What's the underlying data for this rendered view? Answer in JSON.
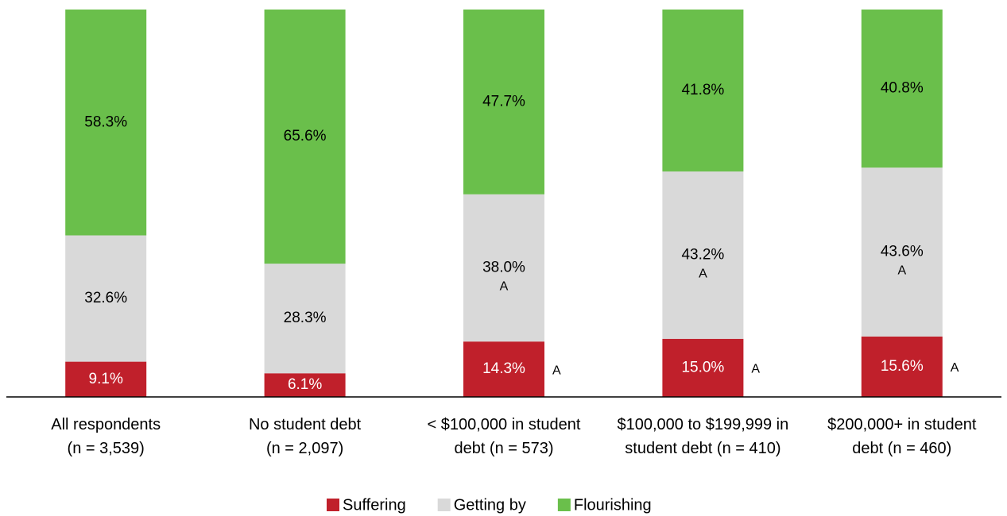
{
  "chart_data": {
    "type": "stacked_bar",
    "categories": [
      "All respondents\n(n = 3,539)",
      "No student debt\n(n = 2,097)",
      "< $100,000 in student\ndebt (n = 573)",
      "$100,000 to $199,999 in\nstudent debt (n = 410)",
      "$200,000+ in student\ndebt (n = 460)"
    ],
    "ylim": [
      0,
      100
    ],
    "legend": "bottom",
    "series": [
      {
        "name": "Suffering",
        "color": "#c0202b",
        "label_color": "#ffffff",
        "values": [
          9.1,
          6.1,
          14.3,
          15.0,
          15.6
        ],
        "value_labels": [
          "9.1%",
          "6.1%",
          "14.3%",
          "15.0%",
          "15.6%"
        ],
        "annotations": [
          null,
          null,
          "A",
          "A",
          "A"
        ],
        "annotation_position": "right"
      },
      {
        "name": "Getting by",
        "color": "#d9d9d9",
        "label_color": "#000000",
        "values": [
          32.6,
          28.3,
          38.0,
          43.2,
          43.6
        ],
        "value_labels": [
          "32.6%",
          "28.3%",
          "38.0%",
          "43.2%",
          "43.6%"
        ],
        "annotations": [
          null,
          null,
          "A",
          "A",
          "A"
        ],
        "annotation_position": "below"
      },
      {
        "name": "Flourishing",
        "color": "#6abf4b",
        "label_color": "#000000",
        "values": [
          58.3,
          65.6,
          47.7,
          41.8,
          40.8
        ],
        "value_labels": [
          "58.3%",
          "65.6%",
          "47.7%",
          "41.8%",
          "40.8%"
        ]
      }
    ]
  }
}
